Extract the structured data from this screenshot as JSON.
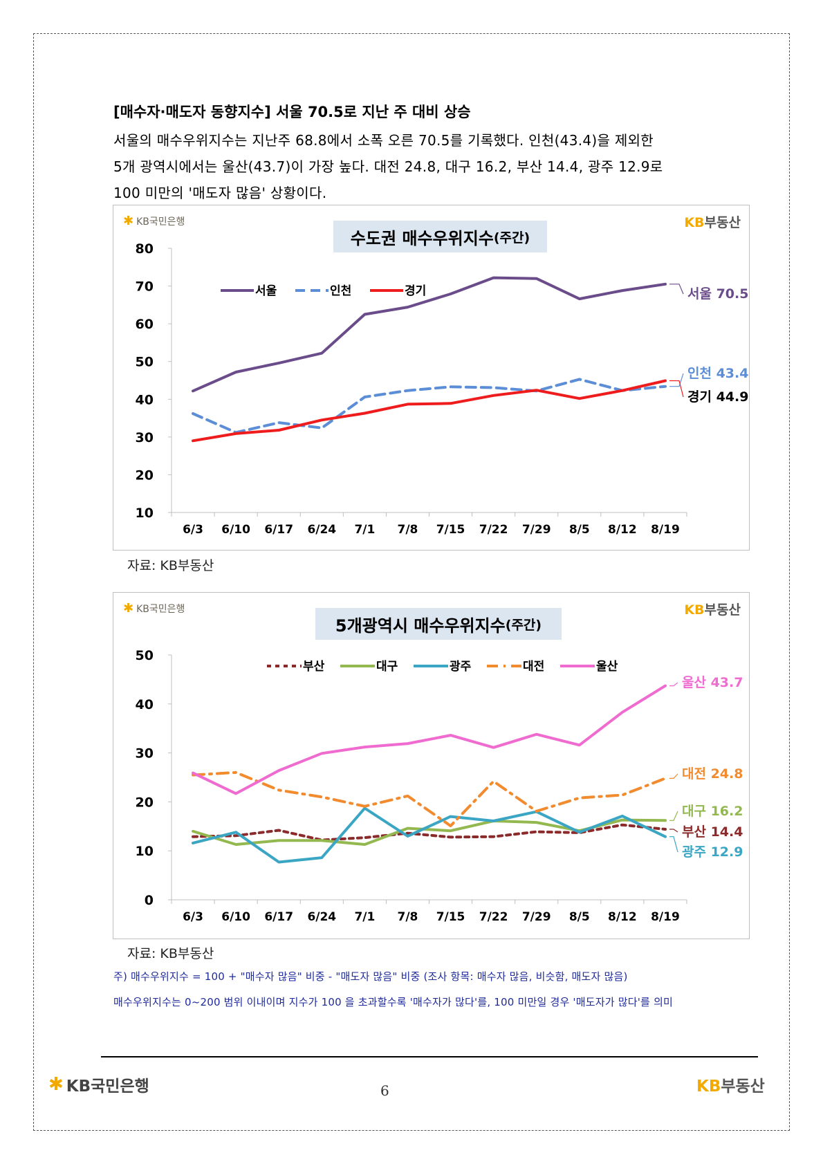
{
  "heading": "[매수자·매도자 동향지수] 서울 70.5로 지난 주 대비 상승",
  "paragraph": [
    "서울의 매수우위지수는 지난주 68.8에서 소폭 오른 70.5를 기록했다. 인천(43.4)을 제외한",
    "5개 광역시에서는 울산(43.7)이 가장 높다. 대전 24.8, 대구 16.2, 부산 14.4, 광주 12.9로",
    "100 미만의 '매도자 많음' 상황이다."
  ],
  "logo_bank": "KB국민은행",
  "logo_land": {
    "kb": "KB",
    "rest": "부동산"
  },
  "source1": "자료: KB부동산",
  "source2": "자료: KB부동산",
  "notes": [
    "주) 매수우위지수 = 100 + \"매수자 많음\" 비중 - \"매도자 많음\" 비중  (조사 항목: 매수자 많음, 비슷함, 매도자 많음)",
    "매수우위지수는 0~200 범위 이내이며 지수가 100 을 초과할수록 '매수자가 많다'를, 100 미만일 경우 '매도자가 많다'를 의미"
  ],
  "footer": {
    "bank": "KB국민은행",
    "page": "6",
    "land_kb": "KB",
    "land_rest": "부동산"
  },
  "chart_data": [
    {
      "type": "line",
      "title": "수도권 매수우위지수",
      "title_suffix": "(주간)",
      "categories": [
        "6/3",
        "6/10",
        "6/17",
        "6/24",
        "7/1",
        "7/8",
        "7/15",
        "7/22",
        "7/29",
        "8/5",
        "8/12",
        "8/19"
      ],
      "ylim": [
        10,
        80
      ],
      "yticks": [
        10,
        20,
        30,
        40,
        50,
        60,
        70,
        80
      ],
      "legend_position": "top-left",
      "grid": false,
      "series": [
        {
          "name": "서울",
          "color": "#6b4c8a",
          "dash": "solid",
          "values": [
            42.2,
            47.2,
            49.6,
            52.2,
            62.5,
            64.4,
            67.9,
            72.2,
            72.0,
            66.6,
            68.8,
            70.5
          ],
          "end_label": "서울 70.5"
        },
        {
          "name": "인천",
          "color": "#5b8ed6",
          "dash": "dash",
          "values": [
            36.2,
            31.2,
            33.8,
            32.4,
            40.6,
            42.3,
            43.3,
            43.1,
            42.2,
            45.3,
            42.3,
            43.4
          ],
          "end_label": "인천 43.4"
        },
        {
          "name": "경기",
          "color": "#ee1c1c",
          "dash": "solid",
          "values": [
            29.0,
            30.9,
            31.8,
            34.5,
            36.3,
            38.7,
            38.9,
            41.0,
            42.4,
            40.2,
            42.3,
            44.9
          ],
          "end_label": "경기 44.9"
        }
      ]
    },
    {
      "type": "line",
      "title": "5개광역시 매수우위지수",
      "title_suffix": "(주간)",
      "categories": [
        "6/3",
        "6/10",
        "6/17",
        "6/24",
        "7/1",
        "7/8",
        "7/15",
        "7/22",
        "7/29",
        "8/5",
        "8/12",
        "8/19"
      ],
      "ylim": [
        0,
        50
      ],
      "yticks": [
        0,
        10,
        20,
        30,
        40,
        50
      ],
      "legend_position": "top",
      "grid": false,
      "series": [
        {
          "name": "부산",
          "color": "#8b2a2a",
          "dash": "dot",
          "values": [
            12.9,
            13.1,
            14.2,
            12.2,
            12.7,
            13.6,
            12.8,
            12.9,
            13.9,
            13.7,
            15.3,
            14.4
          ],
          "end_label": "부산 14.4"
        },
        {
          "name": "대구",
          "color": "#93b84f",
          "dash": "solid",
          "values": [
            14.0,
            11.3,
            12.1,
            12.1,
            11.3,
            14.6,
            14.1,
            16.1,
            15.8,
            14.1,
            16.3,
            16.2
          ],
          "end_label": "대구 16.2"
        },
        {
          "name": "광주",
          "color": "#3ba5c4",
          "dash": "solid",
          "values": [
            11.6,
            13.8,
            7.7,
            8.6,
            18.7,
            13.0,
            17.0,
            16.1,
            18.0,
            13.8,
            17.1,
            12.9
          ],
          "end_label": "광주 12.9"
        },
        {
          "name": "대전",
          "color": "#f28a2e",
          "dash": "dashdot",
          "values": [
            25.5,
            26.0,
            22.4,
            21.0,
            19.1,
            21.2,
            15.1,
            24.2,
            18.1,
            20.8,
            21.4,
            24.8
          ],
          "end_label": "대전 24.8"
        },
        {
          "name": "울산",
          "color": "#f06bd0",
          "dash": "solid",
          "values": [
            25.9,
            21.7,
            26.4,
            29.9,
            31.2,
            31.9,
            33.6,
            31.1,
            33.8,
            31.6,
            38.3,
            43.7
          ],
          "end_label": "울산 43.7"
        }
      ]
    }
  ]
}
